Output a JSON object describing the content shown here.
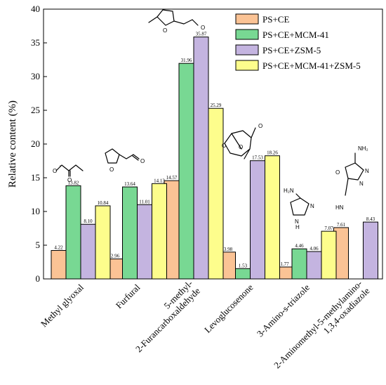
{
  "chart_data": {
    "type": "bar",
    "ylabel": "Relative content (%)",
    "xlabel": "",
    "ylim": [
      0,
      40
    ],
    "yticks": [
      0,
      5,
      10,
      15,
      20,
      25,
      30,
      35,
      40
    ],
    "grid": false,
    "legend_position": "top-right",
    "categories": [
      [
        "Methyl glyoxal"
      ],
      [
        "Furfural"
      ],
      [
        "5-methyl-",
        "2-Furancarboxaldehyde"
      ],
      [
        "Levoglucosenone"
      ],
      [
        "3-Amino-s-triazole"
      ],
      [
        "2-Aminomethyl-5-methylamino-",
        "1,3,4-oxadiazole"
      ]
    ],
    "series": [
      {
        "name": "PS+CE",
        "color": "#FBC395",
        "values": [
          4.22,
          2.96,
          14.57,
          3.98,
          1.77,
          7.61
        ],
        "labels": [
          "4.22",
          "2.96",
          "14.57",
          "3.98",
          "1.77",
          "7.61"
        ]
      },
      {
        "name": "PS+CE+MCM-41",
        "color": "#78D893",
        "values": [
          13.82,
          13.64,
          31.96,
          1.53,
          4.46,
          null
        ],
        "labels": [
          "13.82",
          "13.64",
          "31.96",
          "1.53",
          "4.46",
          ""
        ]
      },
      {
        "name": "PS+CE+ZSM-5",
        "color": "#C4B4E0",
        "values": [
          8.1,
          11.01,
          35.87,
          17.53,
          4.06,
          8.43
        ],
        "labels": [
          "8.10",
          "11.01",
          "35.87",
          "17.53",
          "4.06",
          "8.43"
        ]
      },
      {
        "name": "PS+CE+MCM-41+ZSM-5",
        "color": "#FDFD8C",
        "values": [
          10.84,
          14.13,
          25.29,
          18.26,
          7.07,
          null
        ],
        "labels": [
          "10.84",
          "14.13",
          "25.29",
          "18.26",
          "7.07",
          ""
        ]
      }
    ],
    "annotations": {
      "triazole_amine": "H₂N",
      "triazole_nh": "N\nH",
      "oxadiazole_nh2": "NH₂",
      "oxadiazole_hn": "HN",
      "atom_o": "O",
      "atom_n": "N"
    }
  }
}
